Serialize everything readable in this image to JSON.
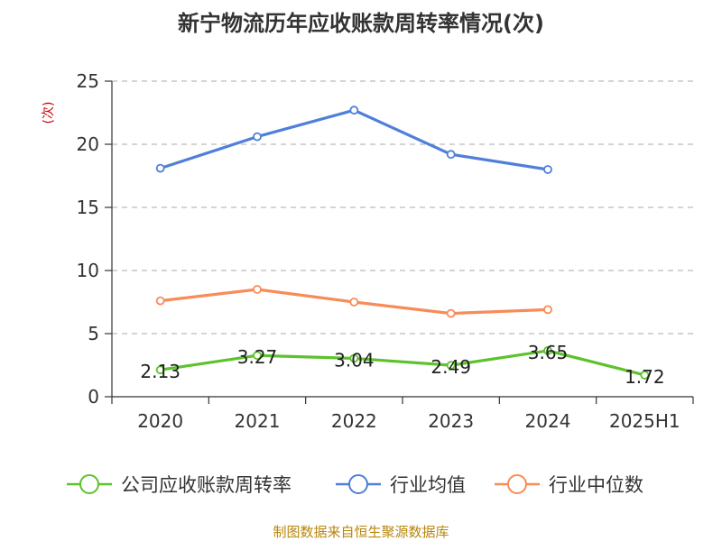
{
  "chart_data": {
    "type": "line",
    "title": "新宁物流历年应收账款周转率情况(次)",
    "ylabel": "(次)",
    "categories": [
      "2020",
      "2021",
      "2022",
      "2023",
      "2024",
      "2025H1"
    ],
    "ylim": [
      0,
      25
    ],
    "yticks": [
      0,
      5,
      10,
      15,
      20,
      25
    ],
    "grid": true,
    "legend_position": "bottom",
    "series": [
      {
        "name": "公司应收账款周转率",
        "color": "#5dc22c",
        "values": [
          2.13,
          3.27,
          3.04,
          2.49,
          3.65,
          1.72
        ],
        "labels": [
          "2.13",
          "3.27",
          "3.04",
          "2.49",
          "3.65",
          "1.72"
        ]
      },
      {
        "name": "行业均值",
        "color": "#4f7fd9",
        "values": [
          18.1,
          20.6,
          22.7,
          19.2,
          18.0,
          null
        ]
      },
      {
        "name": "行业中位数",
        "color": "#f78c57",
        "values": [
          7.6,
          8.5,
          7.5,
          6.6,
          6.9,
          null
        ]
      }
    ]
  },
  "footer": {
    "source": "制图数据来自恒生聚源数据库"
  }
}
